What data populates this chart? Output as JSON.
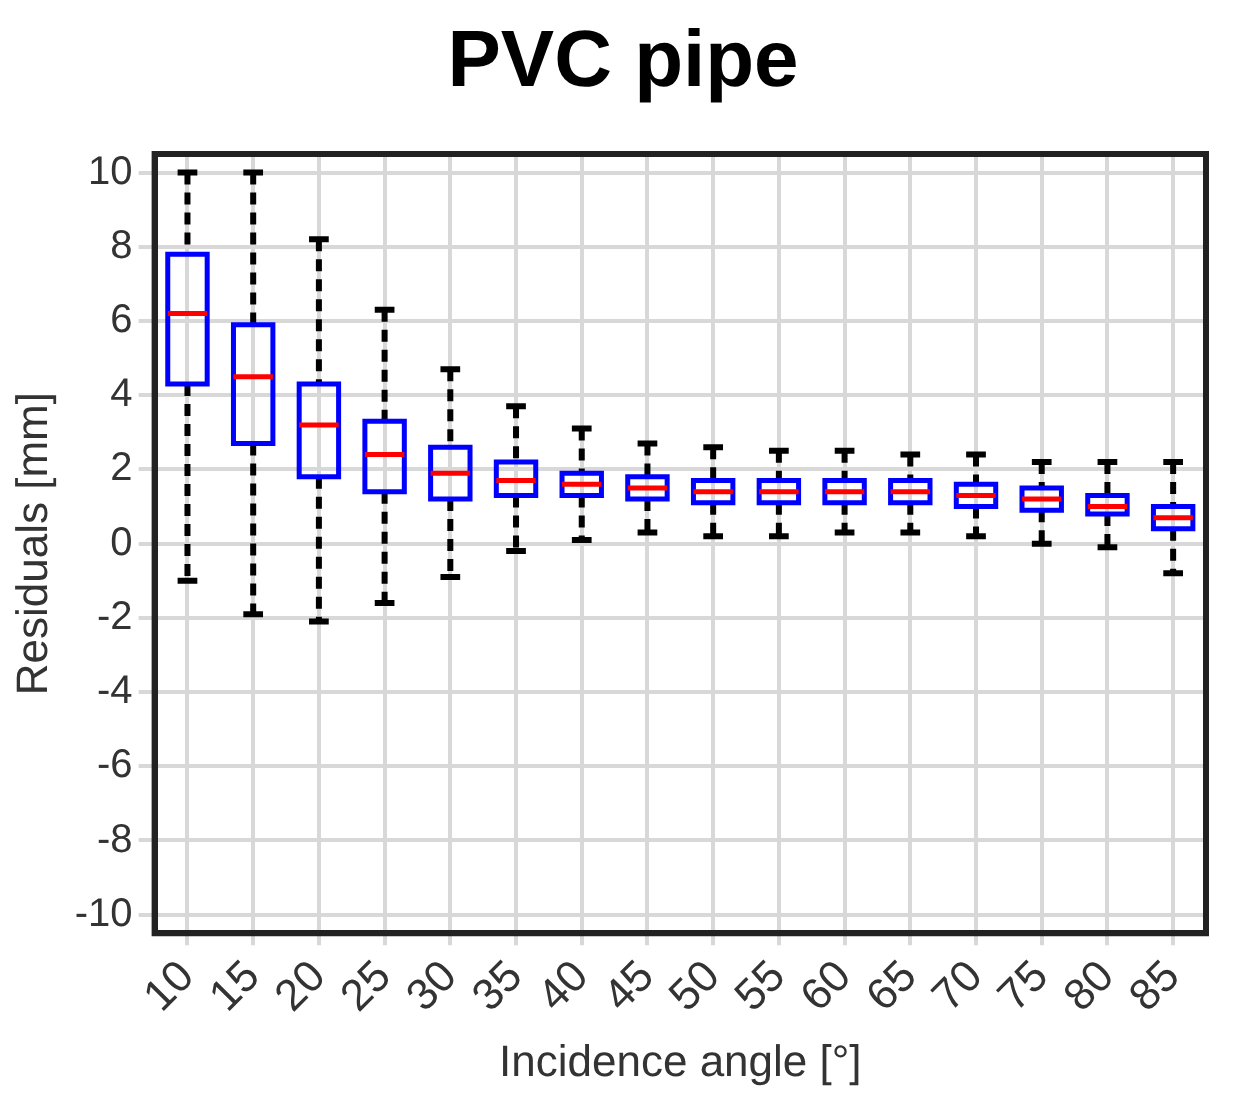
{
  "chart_data": {
    "type": "box",
    "title": "PVC pipe",
    "xlabel": "Incidence angle [°]",
    "ylabel": "Residuals [mm]",
    "categories": [
      "10",
      "15",
      "20",
      "25",
      "30",
      "35",
      "40",
      "45",
      "50",
      "55",
      "60",
      "65",
      "70",
      "75",
      "80",
      "85"
    ],
    "boxes": [
      {
        "low": -1,
        "q1": 4.3,
        "median": 6.2,
        "q3": 7.8,
        "high": 10
      },
      {
        "low": -1.9,
        "q1": 2.7,
        "median": 4.5,
        "q3": 5.9,
        "high": 10
      },
      {
        "low": -2.1,
        "q1": 1.8,
        "median": 3.2,
        "q3": 4.3,
        "high": 8.2
      },
      {
        "low": -1.6,
        "q1": 1.4,
        "median": 2.4,
        "q3": 3.3,
        "high": 6.3
      },
      {
        "low": -0.9,
        "q1": 1.2,
        "median": 1.9,
        "q3": 2.6,
        "high": 4.7
      },
      {
        "low": -0.2,
        "q1": 1.3,
        "median": 1.7,
        "q3": 2.2,
        "high": 3.7
      },
      {
        "low": 0.1,
        "q1": 1.3,
        "median": 1.6,
        "q3": 1.9,
        "high": 3.1
      },
      {
        "low": 0.3,
        "q1": 1.2,
        "median": 1.5,
        "q3": 1.8,
        "high": 2.7
      },
      {
        "low": 0.2,
        "q1": 1.1,
        "median": 1.4,
        "q3": 1.7,
        "high": 2.6
      },
      {
        "low": 0.2,
        "q1": 1.1,
        "median": 1.4,
        "q3": 1.7,
        "high": 2.5
      },
      {
        "low": 0.3,
        "q1": 1.1,
        "median": 1.4,
        "q3": 1.7,
        "high": 2.5
      },
      {
        "low": 0.3,
        "q1": 1.1,
        "median": 1.4,
        "q3": 1.7,
        "high": 2.4
      },
      {
        "low": 0.2,
        "q1": 1,
        "median": 1.3,
        "q3": 1.6,
        "high": 2.4
      },
      {
        "low": 0,
        "q1": 0.9,
        "median": 1.2,
        "q3": 1.5,
        "high": 2.2
      },
      {
        "low": -0.1,
        "q1": 0.8,
        "median": 1,
        "q3": 1.3,
        "high": 2.2
      },
      {
        "low": -0.8,
        "q1": 0.4,
        "median": 0.7,
        "q3": 1,
        "high": 2.2
      }
    ],
    "color": "#0000ff",
    "ylim": [
      -10.5,
      10.5
    ],
    "yticks": [
      -10,
      -8,
      -6,
      -4,
      -2,
      0,
      2,
      4,
      6,
      8,
      10
    ],
    "grid": true,
    "line_style": "dashed"
  }
}
